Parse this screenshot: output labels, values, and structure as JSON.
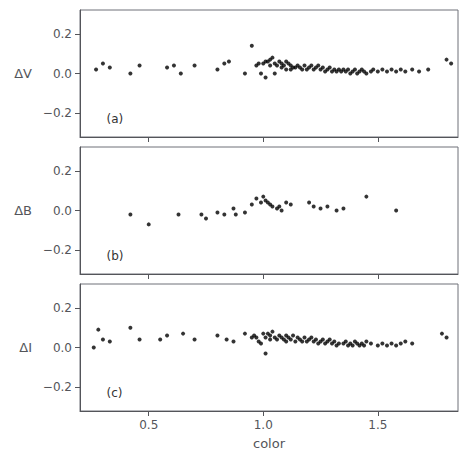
{
  "chart_data": [
    {
      "type": "scatter",
      "ylabel": "ΔV",
      "annotations": [
        "(a)"
      ],
      "color": "#000000",
      "xlim": [
        0.2,
        1.85
      ],
      "ylim": [
        -0.32,
        0.32
      ],
      "xticks": [
        0.5,
        {
          "value": 1.0,
          "label": "1.0"
        },
        1.5
      ],
      "yticks": [
        {
          "value": -0.2,
          "label": "−0.2"
        },
        {
          "value": 0.0,
          "label": "0.0"
        },
        0.2
      ],
      "grid": false,
      "tick_labels": "y",
      "x": [
        0.27,
        0.3,
        0.33,
        0.42,
        0.46,
        0.58,
        0.61,
        0.64,
        0.7,
        0.8,
        0.83,
        0.85,
        0.92,
        0.95,
        0.97,
        0.98,
        0.99,
        1.0,
        1.01,
        1.01,
        1.02,
        1.03,
        1.03,
        1.04,
        1.05,
        1.05,
        1.06,
        1.07,
        1.08,
        1.08,
        1.09,
        1.1,
        1.1,
        1.11,
        1.12,
        1.12,
        1.13,
        1.14,
        1.15,
        1.16,
        1.17,
        1.18,
        1.19,
        1.2,
        1.21,
        1.22,
        1.23,
        1.24,
        1.25,
        1.26,
        1.27,
        1.28,
        1.29,
        1.3,
        1.31,
        1.32,
        1.33,
        1.34,
        1.35,
        1.36,
        1.37,
        1.38,
        1.39,
        1.4,
        1.41,
        1.42,
        1.43,
        1.44,
        1.45,
        1.47,
        1.48,
        1.5,
        1.52,
        1.54,
        1.56,
        1.58,
        1.6,
        1.62,
        1.65,
        1.68,
        1.72,
        1.8,
        1.82
      ],
      "values": [
        0.02,
        0.05,
        0.03,
        0.0,
        0.04,
        0.03,
        0.04,
        0.0,
        0.04,
        0.02,
        0.05,
        0.06,
        0.0,
        0.14,
        0.04,
        0.05,
        0.0,
        0.05,
        0.06,
        -0.02,
        0.06,
        0.07,
        0.04,
        0.08,
        0.05,
        0.0,
        0.04,
        0.06,
        0.03,
        0.05,
        0.04,
        0.06,
        0.02,
        0.05,
        0.04,
        0.02,
        0.03,
        0.03,
        0.04,
        0.03,
        0.02,
        0.04,
        0.02,
        0.03,
        0.04,
        0.02,
        0.03,
        0.04,
        0.02,
        0.03,
        0.01,
        0.02,
        0.03,
        0.01,
        0.02,
        0.01,
        0.02,
        0.01,
        0.02,
        0.01,
        0.02,
        0.0,
        0.01,
        0.02,
        0.0,
        0.01,
        0.02,
        0.01,
        0.0,
        0.01,
        0.02,
        0.01,
        0.02,
        0.01,
        0.02,
        0.01,
        0.02,
        0.01,
        0.02,
        0.01,
        0.02,
        0.07,
        0.05
      ]
    },
    {
      "type": "scatter",
      "ylabel": "ΔB",
      "annotations": [
        "(b)"
      ],
      "color": "#000000",
      "xlim": [
        0.2,
        1.85
      ],
      "ylim": [
        -0.32,
        0.32
      ],
      "xticks": [
        0.5,
        {
          "value": 1.0,
          "label": "1.0"
        },
        1.5
      ],
      "yticks": [
        {
          "value": -0.2,
          "label": "−0.2"
        },
        {
          "value": 0.0,
          "label": "0.0"
        },
        0.2
      ],
      "grid": false,
      "tick_labels": "y",
      "x": [
        0.42,
        0.5,
        0.63,
        0.73,
        0.75,
        0.8,
        0.83,
        0.87,
        0.88,
        0.92,
        0.95,
        0.97,
        0.99,
        1.0,
        1.01,
        1.02,
        1.03,
        1.04,
        1.06,
        1.07,
        1.08,
        1.1,
        1.12,
        1.2,
        1.22,
        1.25,
        1.28,
        1.32,
        1.35,
        1.45,
        1.58
      ],
      "values": [
        -0.02,
        -0.07,
        -0.02,
        -0.02,
        -0.04,
        -0.01,
        -0.02,
        0.01,
        -0.02,
        -0.01,
        0.03,
        0.06,
        0.04,
        0.07,
        0.05,
        0.04,
        0.03,
        0.02,
        0.01,
        0.02,
        0.0,
        0.04,
        0.03,
        0.04,
        0.02,
        0.01,
        0.02,
        0.0,
        0.01,
        0.07,
        0.0
      ]
    },
    {
      "type": "scatter",
      "ylabel": "ΔI",
      "annotations": [
        "(c)"
      ],
      "color": "#000000",
      "xlabel": "color",
      "xlim": [
        0.2,
        1.85
      ],
      "ylim": [
        -0.32,
        0.32
      ],
      "xticks": [
        0.5,
        {
          "value": 1.0,
          "label": "1.0"
        },
        1.5
      ],
      "yticks": [
        {
          "value": -0.2,
          "label": "−0.2"
        },
        {
          "value": 0.0,
          "label": "0.0"
        },
        0.2
      ],
      "grid": false,
      "x": [
        0.26,
        0.28,
        0.3,
        0.33,
        0.42,
        0.46,
        0.55,
        0.58,
        0.65,
        0.7,
        0.8,
        0.84,
        0.87,
        0.92,
        0.95,
        0.96,
        0.97,
        0.98,
        0.99,
        1.0,
        1.01,
        1.01,
        1.02,
        1.03,
        1.03,
        1.04,
        1.05,
        1.06,
        1.07,
        1.08,
        1.09,
        1.1,
        1.1,
        1.11,
        1.12,
        1.13,
        1.14,
        1.15,
        1.16,
        1.17,
        1.18,
        1.19,
        1.2,
        1.21,
        1.22,
        1.23,
        1.24,
        1.25,
        1.26,
        1.27,
        1.28,
        1.29,
        1.3,
        1.31,
        1.32,
        1.33,
        1.35,
        1.36,
        1.37,
        1.38,
        1.39,
        1.4,
        1.41,
        1.42,
        1.43,
        1.44,
        1.45,
        1.47,
        1.5,
        1.52,
        1.54,
        1.56,
        1.58,
        1.6,
        1.62,
        1.65,
        1.78,
        1.8
      ],
      "values": [
        0.0,
        0.09,
        0.04,
        0.03,
        0.1,
        0.04,
        0.04,
        0.06,
        0.07,
        0.04,
        0.06,
        0.04,
        0.03,
        0.07,
        0.05,
        0.06,
        0.05,
        0.03,
        0.02,
        0.07,
        0.05,
        -0.03,
        0.07,
        0.06,
        0.04,
        0.08,
        0.05,
        0.04,
        0.06,
        0.05,
        0.04,
        0.06,
        0.03,
        0.05,
        0.04,
        0.06,
        0.03,
        0.05,
        0.04,
        0.03,
        0.05,
        0.03,
        0.04,
        0.05,
        0.03,
        0.04,
        0.02,
        0.03,
        0.04,
        0.02,
        0.03,
        0.04,
        0.02,
        0.03,
        0.01,
        0.02,
        0.02,
        0.03,
        0.01,
        0.02,
        0.01,
        0.03,
        0.02,
        0.01,
        0.02,
        0.01,
        0.03,
        0.02,
        0.01,
        0.02,
        0.01,
        0.02,
        0.01,
        0.02,
        0.03,
        0.02,
        0.07,
        0.05
      ]
    }
  ]
}
